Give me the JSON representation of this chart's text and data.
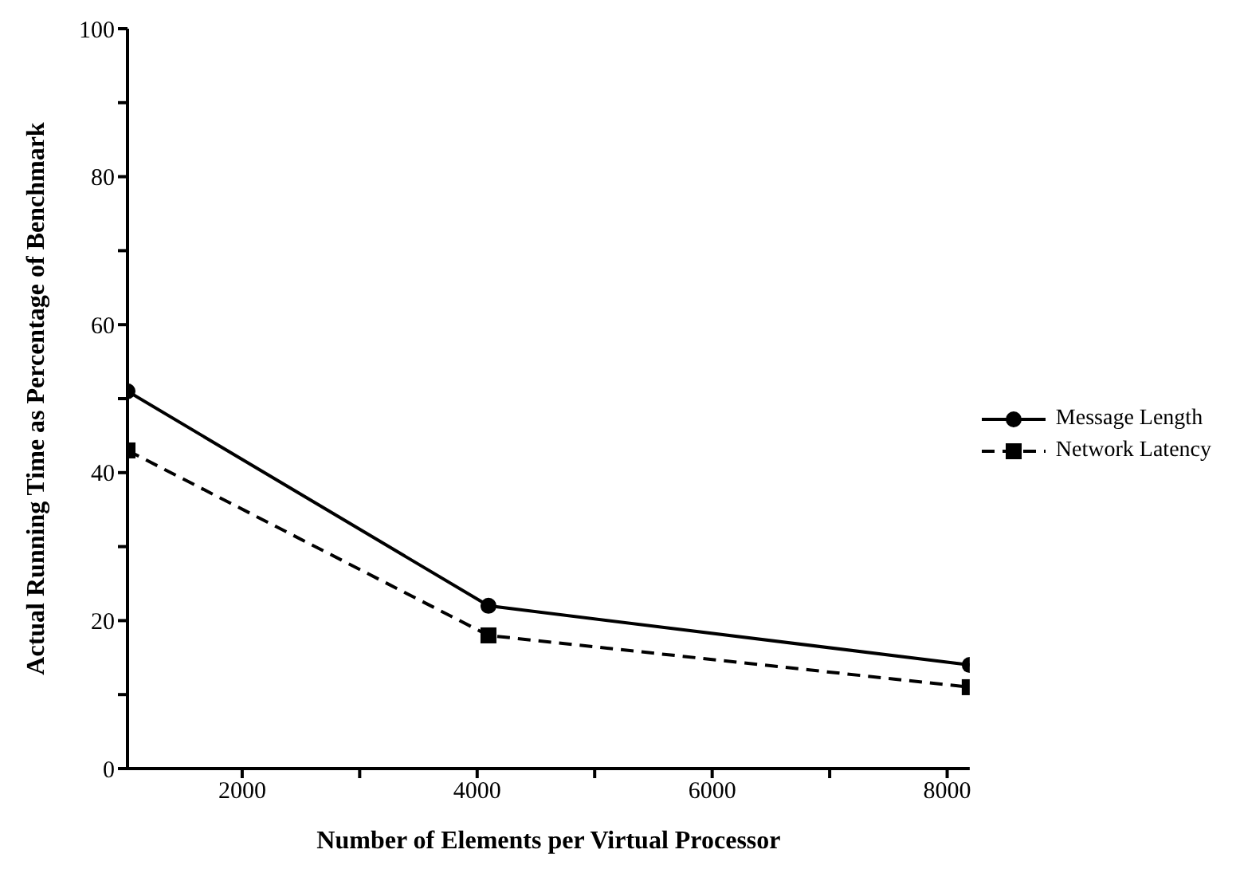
{
  "chart_data": {
    "type": "line",
    "xlabel": "Number of Elements per Virtual Processor",
    "ylabel": "Actual Running Time as Percentage of Benchmark",
    "x": [
      1024,
      4096,
      8192
    ],
    "series": [
      {
        "name": "Message Length",
        "color": "#000000",
        "values": [
          51,
          22,
          14
        ],
        "marker": "circle",
        "line_style": "solid"
      },
      {
        "name": "Network Latency",
        "color": "#000000",
        "values": [
          43,
          18,
          11
        ],
        "marker": "square",
        "line_style": "dashed"
      }
    ],
    "xlim": [
      1024,
      8192
    ],
    "xticks": [
      2000,
      {
        "value": 3000,
        "label": null
      },
      4000,
      {
        "value": 5000,
        "label": null
      },
      6000,
      {
        "value": 7000,
        "label": null
      },
      8000
    ],
    "ylim": [
      0,
      100
    ],
    "yticks": [
      0,
      {
        "value": 10,
        "label": null
      },
      20,
      {
        "value": 30,
        "label": null
      },
      40,
      {
        "value": 50,
        "label": null
      },
      60,
      {
        "value": 70,
        "label": null
      },
      80,
      {
        "value": 90,
        "label": null
      },
      100
    ],
    "grid": false,
    "legend": "right"
  }
}
